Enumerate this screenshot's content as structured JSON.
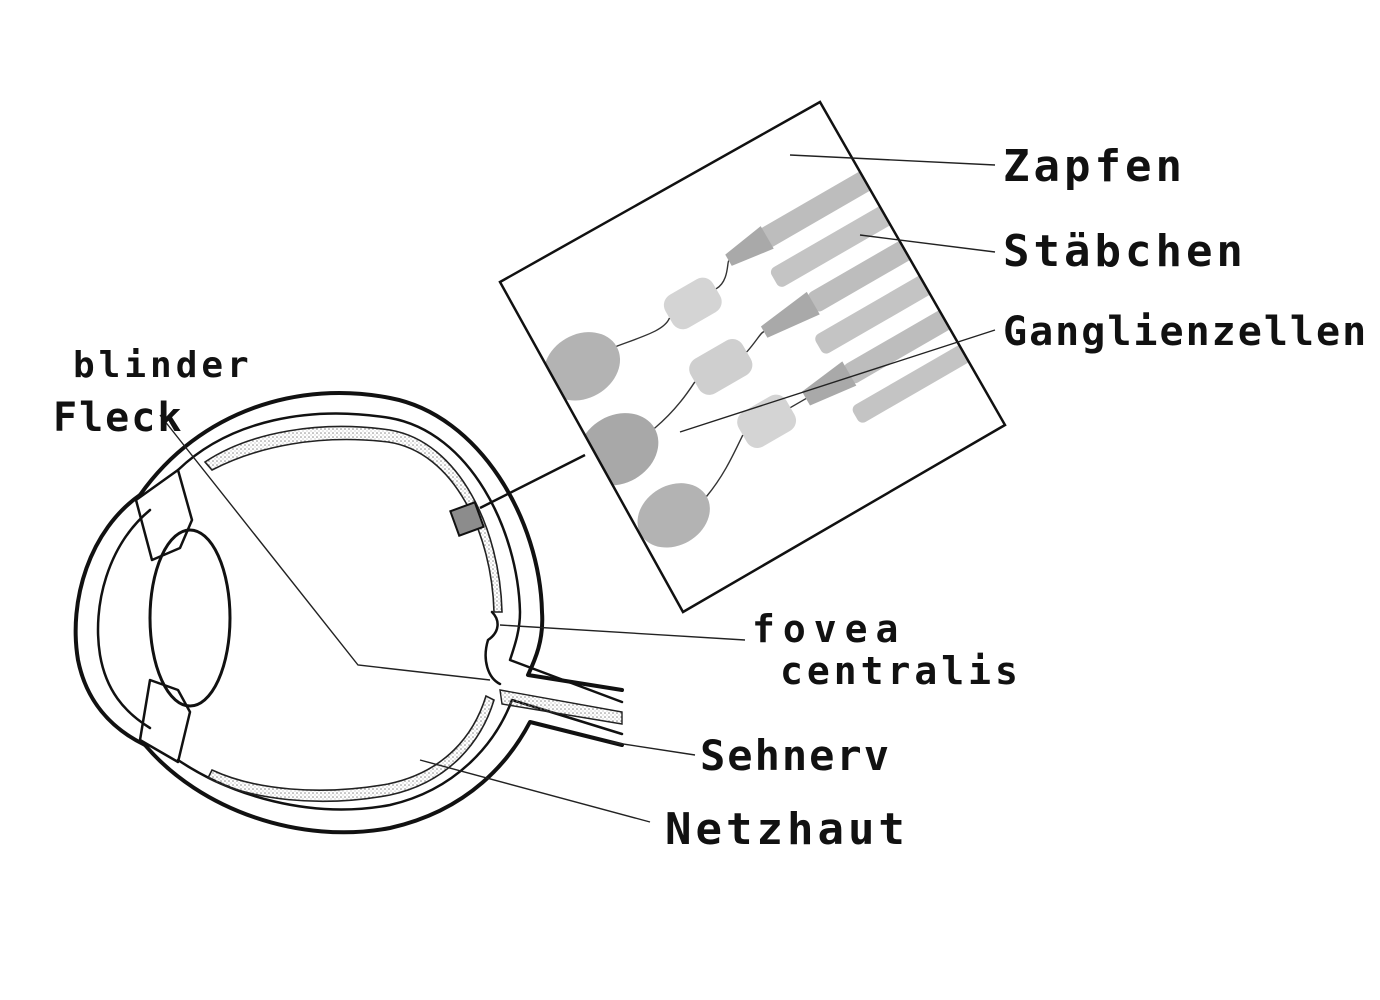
{
  "labels": {
    "zapfen": "Zapfen",
    "staebchen": "Stäbchen",
    "ganglienzellen": "Ganglienzellen",
    "blinder": "blinder",
    "fleck": "Fleck",
    "fovea": "fovea",
    "centralis": "centralis",
    "sehnerv": "Sehnerv",
    "netzhaut": "Netzhaut"
  },
  "colors": {
    "ink": "#111111",
    "cell_gray": "#bdbdbd",
    "cell_light": "#d9d9d9",
    "retina_dots": "#9a9a9a",
    "inset_marker": "#8c8c8c"
  }
}
